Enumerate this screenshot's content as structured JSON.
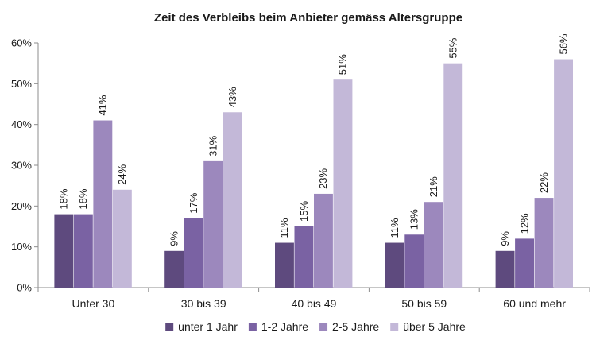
{
  "chart_data": {
    "type": "bar",
    "title": "Zeit des Verbleibs beim Anbieter gemäss Altersgruppe",
    "categories": [
      "Unter 30",
      "30 bis 39",
      "40 bis 49",
      "50 bis 59",
      "60 und mehr"
    ],
    "series": [
      {
        "name": "unter 1 Jahr",
        "color": "#5e4a7e",
        "values": [
          18,
          9,
          11,
          11,
          9
        ],
        "labels": [
          "18%",
          "9%",
          "11%",
          "11%",
          "9%"
        ]
      },
      {
        "name": "1-2 Jahre",
        "color": "#7a62a3",
        "values": [
          18,
          17,
          15,
          13,
          12
        ],
        "labels": [
          "18%",
          "17%",
          "15%",
          "13%",
          "12%"
        ]
      },
      {
        "name": "2-5 Jahre",
        "color": "#9c88bd",
        "values": [
          41,
          31,
          23,
          21,
          22
        ],
        "labels": [
          "41%",
          "31%",
          "23%",
          "21%",
          "22%"
        ]
      },
      {
        "name": "über 5 Jahre",
        "color": "#c3b8d8",
        "values": [
          24,
          43,
          51,
          55,
          56
        ],
        "labels": [
          "24%",
          "43%",
          "51%",
          "55%",
          "56%"
        ]
      }
    ],
    "yticks": [
      "0%",
      "10%",
      "20%",
      "30%",
      "40%",
      "50%",
      "60%"
    ],
    "ylim": [
      0,
      60
    ],
    "grid": false,
    "legend_position": "bottom"
  }
}
